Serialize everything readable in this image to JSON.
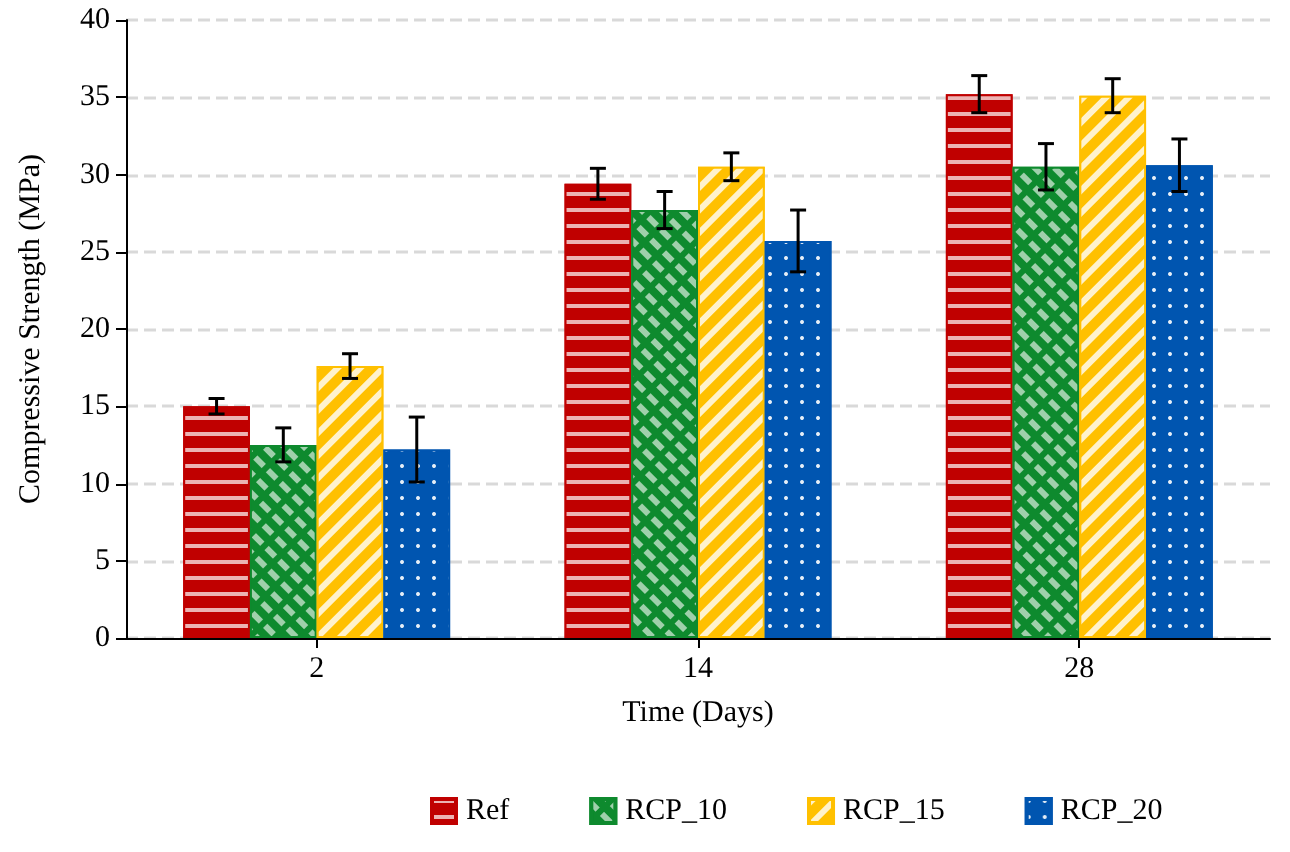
{
  "chart_data": {
    "type": "bar",
    "xlabel": "Time (Days)",
    "ylabel": "Compressive Strength (MPa)",
    "categories": [
      "2",
      "14",
      "28"
    ],
    "series": [
      {
        "name": "Ref",
        "color": "#c00000",
        "values": [
          15.0,
          29.4,
          35.2
        ],
        "errors": [
          0.5,
          1.0,
          1.2
        ]
      },
      {
        "name": "RCP_10",
        "color": "#0e8a2e",
        "values": [
          12.5,
          27.7,
          30.5
        ],
        "errors": [
          1.1,
          1.2,
          1.5
        ]
      },
      {
        "name": "RCP_15",
        "color": "#ffc000",
        "values": [
          17.6,
          30.5,
          35.1
        ],
        "errors": [
          0.8,
          0.9,
          1.1
        ]
      },
      {
        "name": "RCP_20",
        "color": "#0055b0",
        "values": [
          12.2,
          25.7,
          30.6
        ],
        "errors": [
          2.1,
          2.0,
          1.7
        ]
      }
    ],
    "ylim": [
      0,
      40
    ],
    "yticks": [
      0,
      5,
      10,
      15,
      20,
      25,
      30,
      35,
      40
    ],
    "grid": "y",
    "legend": "bottom"
  }
}
